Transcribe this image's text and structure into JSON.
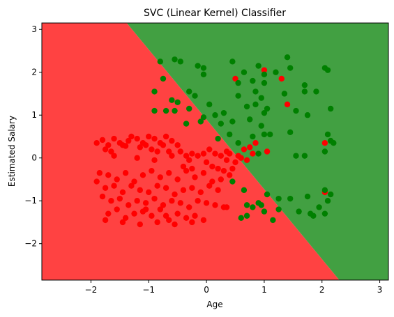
{
  "chart_data": {
    "type": "scatter",
    "title": "SVC (Linear Kernel) Classifier",
    "xlabel": "Age",
    "ylabel": "Estimated Salary",
    "xlim": [
      -2.85,
      3.15
    ],
    "ylim": [
      -2.85,
      3.15
    ],
    "xticks": [
      -2,
      -1,
      0,
      1,
      2,
      3
    ],
    "yticks": [
      -2,
      -1,
      0,
      1,
      2,
      3
    ],
    "tick_labels": {
      "x": [
        "−2",
        "−1",
        "0",
        "1",
        "2",
        "3"
      ],
      "y": [
        "−2",
        "−1",
        "0",
        "1",
        "2",
        "3"
      ]
    },
    "grid": false,
    "decision_boundary": {
      "description_points": [
        [
          -1.38,
          3.15
        ],
        [
          2.3,
          -2.85
        ]
      ],
      "region_colors": {
        "class_0": "#ff4242",
        "class_1": "#42a042"
      }
    },
    "colors": {
      "class_0": "#ff0000",
      "class_1": "#008000"
    },
    "series": [
      {
        "class": 0,
        "points": [
          [
            -1.9,
            0.35
          ],
          [
            -1.8,
            0.42
          ],
          [
            -1.7,
            0.3
          ],
          [
            -1.6,
            0.45
          ],
          [
            -1.5,
            0.35
          ],
          [
            -1.4,
            0.28
          ],
          [
            -1.3,
            0.5
          ],
          [
            -1.2,
            0.45
          ],
          [
            -1.1,
            0.35
          ],
          [
            -1.0,
            0.5
          ],
          [
            -0.9,
            0.45
          ],
          [
            -0.8,
            0.35
          ],
          [
            -0.7,
            0.5
          ],
          [
            -0.6,
            0.4
          ],
          [
            -0.5,
            0.3
          ],
          [
            -1.75,
            0.2
          ],
          [
            -1.65,
            0.15
          ],
          [
            -1.45,
            0.3
          ],
          [
            -1.35,
            0.4
          ],
          [
            -1.15,
            0.25
          ],
          [
            -1.05,
            0.3
          ],
          [
            -0.95,
            0.2
          ],
          [
            -0.85,
            0.15
          ],
          [
            -0.75,
            0.3
          ],
          [
            -0.65,
            0.15
          ],
          [
            -0.45,
            0.15
          ],
          [
            -0.35,
            0.05
          ],
          [
            -0.25,
            0.1
          ],
          [
            -0.15,
            0.05
          ],
          [
            -0.05,
            0.1
          ],
          [
            0.05,
            0.2
          ],
          [
            0.15,
            0.1
          ],
          [
            0.25,
            0.05
          ],
          [
            0.35,
            0.15
          ],
          [
            -1.6,
            0.05
          ],
          [
            -1.2,
            0.0
          ],
          [
            -0.9,
            -0.05
          ],
          [
            -0.6,
            0.05
          ],
          [
            -0.3,
            -0.05
          ],
          [
            0.0,
            -0.1
          ],
          [
            0.1,
            -0.2
          ],
          [
            0.2,
            -0.25
          ],
          [
            0.3,
            -0.3
          ],
          [
            -1.85,
            -0.35
          ],
          [
            -1.7,
            -0.4
          ],
          [
            -1.55,
            -0.5
          ],
          [
            -1.4,
            -0.35
          ],
          [
            -1.25,
            -0.55
          ],
          [
            -1.1,
            -0.4
          ],
          [
            -0.95,
            -0.3
          ],
          [
            -0.8,
            -0.45
          ],
          [
            -0.65,
            -0.35
          ],
          [
            -0.5,
            -0.5
          ],
          [
            -0.35,
            -0.3
          ],
          [
            -0.2,
            -0.45
          ],
          [
            -0.05,
            -0.35
          ],
          [
            0.1,
            -0.55
          ],
          [
            0.25,
            -0.5
          ],
          [
            -0.4,
            -0.2
          ],
          [
            -0.25,
            -0.25
          ],
          [
            0.4,
            -0.4
          ],
          [
            -1.9,
            -0.55
          ],
          [
            -1.75,
            -0.7
          ],
          [
            -1.6,
            -0.65
          ],
          [
            -1.45,
            -0.8
          ],
          [
            -1.3,
            -0.65
          ],
          [
            -1.15,
            -0.75
          ],
          [
            -1.0,
            -0.8
          ],
          [
            -0.85,
            -0.65
          ],
          [
            -0.7,
            -0.7
          ],
          [
            -0.55,
            -0.85
          ],
          [
            -0.4,
            -0.75
          ],
          [
            -0.25,
            -0.7
          ],
          [
            -0.1,
            -0.8
          ],
          [
            0.05,
            -0.65
          ],
          [
            0.2,
            -0.75
          ],
          [
            -1.8,
            -0.9
          ],
          [
            -1.65,
            -1.0
          ],
          [
            -1.5,
            -0.95
          ],
          [
            -1.35,
            -1.1
          ],
          [
            -1.2,
            -1.0
          ],
          [
            -1.05,
            -1.05
          ],
          [
            -0.9,
            -0.95
          ],
          [
            -0.75,
            -1.1
          ],
          [
            -0.6,
            -1.0
          ],
          [
            -0.45,
            -1.05
          ],
          [
            -0.3,
            -1.15
          ],
          [
            -0.15,
            -1.0
          ],
          [
            0.0,
            -1.05
          ],
          [
            0.15,
            -1.1
          ],
          [
            0.3,
            -1.15
          ],
          [
            -1.7,
            -1.3
          ],
          [
            -1.55,
            -1.2
          ],
          [
            -1.4,
            -1.4
          ],
          [
            -1.25,
            -1.3
          ],
          [
            -1.1,
            -1.25
          ],
          [
            -0.95,
            -1.35
          ],
          [
            -0.8,
            -1.2
          ],
          [
            -0.65,
            -1.45
          ],
          [
            -0.5,
            -1.3
          ],
          [
            -0.35,
            -1.4
          ],
          [
            -0.2,
            -1.35
          ],
          [
            -0.05,
            -1.45
          ],
          [
            -1.75,
            -1.45
          ],
          [
            -1.45,
            -1.5
          ],
          [
            -1.15,
            -1.55
          ],
          [
            -0.85,
            -1.5
          ],
          [
            -0.55,
            -1.55
          ],
          [
            -0.25,
            -1.5
          ],
          [
            0.35,
            -1.15
          ],
          [
            -1.05,
            -1.2
          ],
          [
            -0.7,
            -1.35
          ],
          [
            0.5,
            1.85
          ],
          [
            1.0,
            2.05
          ],
          [
            1.3,
            1.85
          ],
          [
            0.85,
            0.35
          ],
          [
            0.75,
            0.25
          ],
          [
            1.05,
            0.15
          ],
          [
            0.4,
            0.1
          ],
          [
            0.55,
            0.05
          ],
          [
            0.65,
            0.2
          ],
          [
            0.7,
            -0.05
          ],
          [
            0.8,
            0.1
          ],
          [
            1.4,
            1.25
          ],
          [
            2.05,
            0.35
          ],
          [
            2.05,
            -0.8
          ],
          [
            0.5,
            -0.1
          ],
          [
            0.35,
            -0.05
          ],
          [
            0.45,
            -0.25
          ],
          [
            0.6,
            0.0
          ]
        ]
      },
      {
        "class": 1,
        "points": [
          [
            -0.8,
            2.25
          ],
          [
            -0.55,
            2.3
          ],
          [
            -0.45,
            2.25
          ],
          [
            -0.75,
            1.85
          ],
          [
            -0.9,
            1.55
          ],
          [
            -0.6,
            1.35
          ],
          [
            -0.5,
            1.3
          ],
          [
            -0.3,
            1.55
          ],
          [
            -0.2,
            1.45
          ],
          [
            -0.15,
            2.15
          ],
          [
            -0.05,
            2.1
          ],
          [
            -0.05,
            1.95
          ],
          [
            0.45,
            2.25
          ],
          [
            0.55,
            1.75
          ],
          [
            0.65,
            2.0
          ],
          [
            0.8,
            1.8
          ],
          [
            0.9,
            2.15
          ],
          [
            1.0,
            1.95
          ],
          [
            1.0,
            1.75
          ],
          [
            1.2,
            2.0
          ],
          [
            1.4,
            2.35
          ],
          [
            1.45,
            2.1
          ],
          [
            1.35,
            1.5
          ],
          [
            1.05,
            1.15
          ],
          [
            0.95,
            1.4
          ],
          [
            0.85,
            1.25
          ],
          [
            0.55,
            1.45
          ],
          [
            0.7,
            1.2
          ],
          [
            0.05,
            1.25
          ],
          [
            0.15,
            1.0
          ],
          [
            -0.1,
            0.85
          ],
          [
            0.3,
            1.05
          ],
          [
            -0.3,
            1.15
          ],
          [
            -0.55,
            1.1
          ],
          [
            -0.7,
            1.1
          ],
          [
            -0.9,
            1.1
          ],
          [
            -0.35,
            0.8
          ],
          [
            0.25,
            0.8
          ],
          [
            0.45,
            0.85
          ],
          [
            0.8,
            0.5
          ],
          [
            0.95,
            0.75
          ],
          [
            1.0,
            0.55
          ],
          [
            1.1,
            0.55
          ],
          [
            1.45,
            0.6
          ],
          [
            1.55,
            1.1
          ],
          [
            1.75,
            1.0
          ],
          [
            1.7,
            1.55
          ],
          [
            1.7,
            1.7
          ],
          [
            1.9,
            1.55
          ],
          [
            2.05,
            2.1
          ],
          [
            2.1,
            2.05
          ],
          [
            2.15,
            1.15
          ],
          [
            2.1,
            0.55
          ],
          [
            2.15,
            0.4
          ],
          [
            2.2,
            0.35
          ],
          [
            2.05,
            0.15
          ],
          [
            1.7,
            0.05
          ],
          [
            0.2,
            0.45
          ],
          [
            0.45,
            -0.55
          ],
          [
            0.65,
            -0.75
          ],
          [
            0.7,
            -1.1
          ],
          [
            0.7,
            -1.35
          ],
          [
            0.8,
            -1.15
          ],
          [
            0.9,
            -1.05
          ],
          [
            0.95,
            -1.1
          ],
          [
            1.0,
            -1.25
          ],
          [
            1.05,
            -0.85
          ],
          [
            1.25,
            -0.95
          ],
          [
            1.25,
            -1.2
          ],
          [
            1.15,
            -1.45
          ],
          [
            1.45,
            -0.95
          ],
          [
            1.6,
            -1.25
          ],
          [
            1.75,
            -0.9
          ],
          [
            2.05,
            -0.75
          ],
          [
            2.15,
            -0.85
          ],
          [
            1.95,
            -1.15
          ],
          [
            2.05,
            -1.3
          ],
          [
            2.1,
            -1.0
          ],
          [
            1.85,
            -1.35
          ],
          [
            0.75,
            0.9
          ],
          [
            0.4,
            0.55
          ],
          [
            0.55,
            0.35
          ],
          [
            0.9,
            0.1
          ],
          [
            0.6,
            -1.4
          ],
          [
            1.8,
            -1.3
          ],
          [
            1.55,
            0.05
          ],
          [
            -0.05,
            0.95
          ],
          [
            0.85,
            1.55
          ],
          [
            1.0,
            1.05
          ]
        ]
      }
    ]
  }
}
